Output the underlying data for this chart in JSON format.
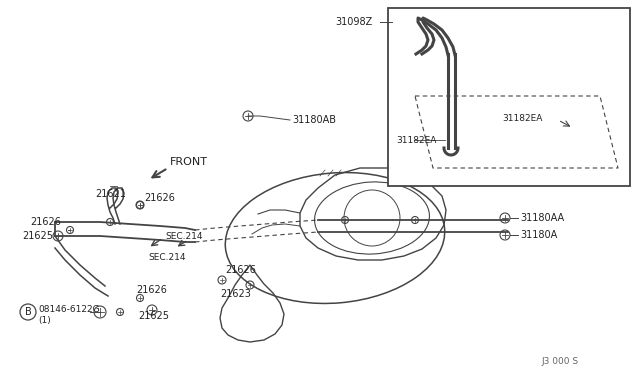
{
  "bg_color": "#f0f0f0",
  "line_color": "#444444",
  "text_color": "#222222",
  "part_number_ref": "J3 000 S",
  "labels": {
    "front": "FRONT",
    "31180AB": "31180AB",
    "21621": "21621",
    "21626": "21626",
    "21625": "21625",
    "SEC214": "SEC.214",
    "21623": "21623",
    "08146": "08146-6122G",
    "B_circle": "B",
    "one": "(1)",
    "31180AA": "31180AA",
    "31180A": "31180A",
    "31098Z": "31098Z",
    "31182EA": "31182EA"
  },
  "figsize": [
    6.4,
    3.72
  ],
  "dpi": 100
}
